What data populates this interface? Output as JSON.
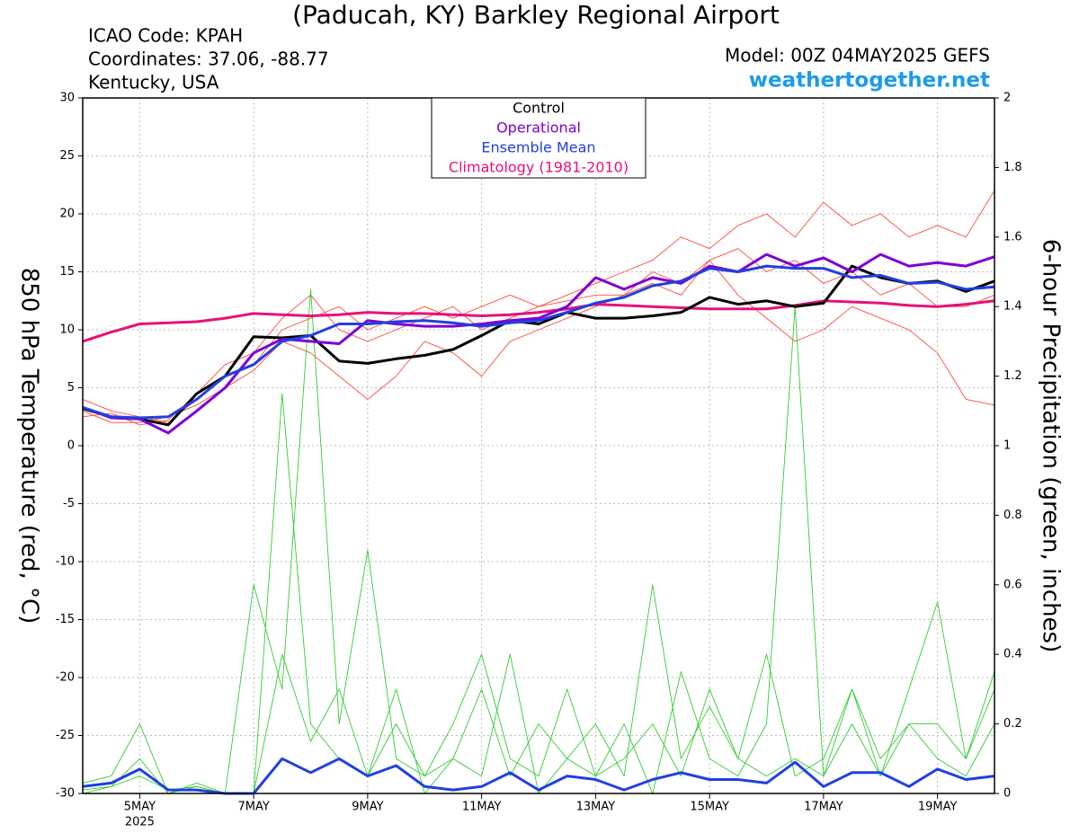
{
  "chart_data": {
    "type": "line",
    "title": "(Paducah, KY) Barkley Regional Airport",
    "info_left": [
      "ICAO Code: KPAH",
      "Coordinates: 37.06, -88.77",
      "Kentucky, USA"
    ],
    "model": "Model: 00Z 04MAY2025 GEFS",
    "site": "weathertogether.net",
    "ylabel": "850 hPa Temperature (red, °C)",
    "y2label": "6-hour Precipitation (green, inches)",
    "x": [
      0,
      12,
      24,
      36,
      48,
      60,
      72,
      84,
      96,
      108,
      120,
      132,
      144,
      156,
      168,
      180,
      192,
      204,
      216,
      228,
      240,
      252,
      264,
      276,
      288,
      300,
      312,
      324,
      336,
      348,
      360,
      372,
      384
    ],
    "xlim": [
      0,
      384
    ],
    "xticks": [
      {
        "value": 24,
        "label": "5MAY"
      },
      {
        "value": 72,
        "label": "7MAY"
      },
      {
        "value": 120,
        "label": "9MAY"
      },
      {
        "value": 168,
        "label": "11MAY"
      },
      {
        "value": 216,
        "label": "13MAY"
      },
      {
        "value": 264,
        "label": "15MAY"
      },
      {
        "value": 312,
        "label": "17MAY"
      },
      {
        "value": 360,
        "label": "19MAY"
      }
    ],
    "x_year_label": "2025",
    "ylim": [
      -30,
      30
    ],
    "yticks": [
      -30,
      -25,
      -20,
      -15,
      -10,
      -5,
      0,
      5,
      10,
      15,
      20,
      25,
      30
    ],
    "y2lim": [
      0,
      2
    ],
    "y2ticks": [
      0,
      0.2,
      0.4,
      0.6,
      0.8,
      1,
      1.2,
      1.4,
      1.6,
      1.8,
      2
    ],
    "series": [
      {
        "color": "#ff4a3a",
        "values": [
          4,
          3,
          2.5,
          2,
          4,
          6,
          7,
          10,
          11,
          12,
          10,
          11,
          12,
          11,
          12,
          13,
          12,
          13,
          14,
          15,
          16,
          18,
          17,
          19,
          20,
          18,
          21,
          19,
          20,
          18,
          19,
          18,
          22
        ]
      },
      {
        "color": "#ff4a3a",
        "values": [
          3,
          2,
          2,
          2.5,
          3.5,
          5,
          6.5,
          9,
          8,
          6,
          4,
          6,
          9,
          8,
          6,
          9,
          10,
          11,
          12,
          13,
          14,
          13,
          16,
          13,
          11,
          9,
          10,
          12,
          11,
          10,
          8,
          4,
          3.5
        ]
      },
      {
        "color": "#ff4a3a",
        "values": [
          2.5,
          2.8,
          1.8,
          2.2,
          4.5,
          7,
          8,
          11,
          13,
          10,
          9,
          10,
          11,
          12,
          10,
          11,
          12,
          12.5,
          13,
          13,
          15,
          14,
          16,
          17,
          15,
          16,
          14,
          15,
          13,
          14,
          12,
          12,
          13
        ]
      },
      {
        "color": "#33cc33",
        "axis": "y2",
        "values": [
          0.03,
          0.05,
          0.2,
          0,
          0.03,
          0,
          0,
          1.15,
          0.2,
          0.1,
          0.05,
          0.3,
          0,
          0.1,
          0.05,
          0.4,
          0,
          0.1,
          0.05,
          0.2,
          0,
          0.35,
          0.1,
          0.05,
          0.2,
          1.4,
          0.05,
          0.3,
          0.1,
          0.2,
          0.2,
          0.1,
          0.3
        ]
      },
      {
        "color": "#33cc33",
        "axis": "y2",
        "values": [
          0.01,
          0.02,
          0.1,
          0,
          0.02,
          0,
          0.6,
          0.3,
          1.45,
          0.2,
          0.7,
          0.1,
          0.05,
          0.2,
          0.4,
          0.1,
          0.05,
          0.3,
          0.05,
          0.1,
          0.2,
          0.05,
          0.3,
          0.1,
          0.05,
          0.1,
          0.05,
          0.2,
          0.05,
          0.3,
          0.55,
          0.1,
          0.35
        ]
      },
      {
        "color": "#33cc33",
        "axis": "y2",
        "values": [
          0,
          0.02,
          0.05,
          0.01,
          0.02,
          0,
          0,
          0.4,
          0.15,
          0.3,
          0.05,
          0.2,
          0.05,
          0.1,
          0.3,
          0.05,
          0.2,
          0.1,
          0.2,
          0.05,
          0.6,
          0.1,
          0.25,
          0.1,
          0.4,
          0.05,
          0.1,
          0.3,
          0.05,
          0.2,
          0.1,
          0.05,
          0.2
        ]
      },
      {
        "name": "Climatology (1981-2010)",
        "color": "#e8107a",
        "values": [
          9,
          9.8,
          10.5,
          10.6,
          10.7,
          11,
          11.4,
          11.3,
          11.2,
          11.3,
          11.5,
          11.4,
          11.4,
          11.3,
          11.2,
          11.3,
          11.5,
          11.8,
          12.2,
          12.1,
          12,
          11.9,
          11.8,
          11.8,
          11.8,
          12.1,
          12.5,
          12.4,
          12.3,
          12.1,
          12,
          12.2,
          12.5
        ]
      },
      {
        "name": "Control",
        "color": "#000000",
        "values": [
          3.2,
          2.5,
          2.3,
          1.8,
          4.5,
          6,
          9.4,
          9.3,
          9.5,
          7.3,
          7.1,
          7.5,
          7.8,
          8.3,
          9.5,
          10.8,
          10.5,
          11.5,
          11,
          11,
          11.2,
          11.5,
          12.8,
          12.2,
          12.5,
          12,
          12.3,
          15.5,
          14.5,
          14,
          14.2,
          13.3,
          14.2
        ]
      },
      {
        "name": "Operational",
        "color": "#7f00d4",
        "values": [
          3.3,
          2.4,
          2.3,
          1.1,
          3,
          5,
          8,
          9.2,
          9,
          8.8,
          10.8,
          10.5,
          10.3,
          10.3,
          10.5,
          10.8,
          11,
          12,
          14.5,
          13.5,
          14.5,
          14,
          15.5,
          15,
          16.5,
          15.5,
          16.2,
          15,
          16.5,
          15.5,
          15.8,
          15.5,
          16.3
        ]
      },
      {
        "name": "Ensemble Mean",
        "color": "#2040e0",
        "values": [
          3.3,
          2.5,
          2.4,
          2.5,
          4,
          6,
          7,
          9,
          9.5,
          10.5,
          10.5,
          10.7,
          10.8,
          10.6,
          10.3,
          10.6,
          10.8,
          11.5,
          12.3,
          12.8,
          13.8,
          14.2,
          15.3,
          15,
          15.5,
          15.3,
          15.3,
          14.5,
          14.7,
          14,
          14.1,
          13.5,
          13.7
        ]
      },
      {
        "color": "#2040e0",
        "axis": "y2",
        "values": [
          0.02,
          0.03,
          0.07,
          0.01,
          0.01,
          0,
          0,
          0.1,
          0.06,
          0.1,
          0.05,
          0.08,
          0.02,
          0.01,
          0.02,
          0.06,
          0.01,
          0.05,
          0.04,
          0.01,
          0.04,
          0.06,
          0.04,
          0.04,
          0.03,
          0.09,
          0.02,
          0.06,
          0.06,
          0.02,
          0.07,
          0.04,
          0.05
        ]
      }
    ]
  }
}
